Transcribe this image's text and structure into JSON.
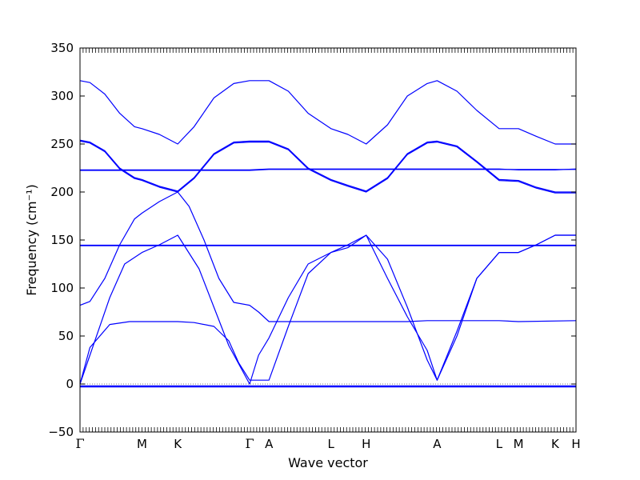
{
  "chart_data": {
    "type": "line",
    "title": "",
    "xlabel": "Wave vector",
    "ylabel": "Frequency (cm⁻¹)",
    "ylim": [
      -50,
      350
    ],
    "yticks": [
      -50,
      0,
      50,
      100,
      150,
      200,
      250,
      300,
      350
    ],
    "xlim": [
      0,
      1
    ],
    "grid": false,
    "high_symmetry_points": [
      {
        "label": "Γ",
        "x": 0.0
      },
      {
        "label": "M",
        "x": 0.125
      },
      {
        "label": "K",
        "x": 0.197
      },
      {
        "label": "Γ",
        "x": 0.342
      },
      {
        "label": "A",
        "x": 0.381
      },
      {
        "label": "L",
        "x": 0.506
      },
      {
        "label": "H",
        "x": 0.577
      },
      {
        "label": "A",
        "x": 0.72
      },
      {
        "label": "L",
        "x": 0.845
      },
      {
        "label": "M",
        "x": 0.884
      },
      {
        "label": "K",
        "x": 0.958
      },
      {
        "label": "H",
        "x": 1.0
      }
    ],
    "series_color": "#0000ff",
    "series": [
      {
        "x": [
          0,
          0.125,
          0.197,
          0.342,
          0.381,
          0.506,
          0.577,
          0.72,
          0.845,
          0.884,
          0.958,
          1.0
        ],
        "y": [
          -2,
          -2,
          -2,
          -2,
          -2,
          -2,
          -2,
          -2,
          -2,
          -2,
          -2,
          -2
        ]
      },
      {
        "x": [
          0,
          0.125,
          0.197,
          0.342,
          0.381,
          0.506,
          0.577,
          0.72,
          0.845,
          0.884,
          0.958,
          1.0
        ],
        "y": [
          -3,
          -3,
          -3,
          -3,
          -3,
          -3,
          -3,
          -3,
          -3,
          -3,
          -3,
          -3
        ]
      },
      {
        "x": [
          0,
          0.02,
          0.06,
          0.1,
          0.125,
          0.16,
          0.197,
          0.23,
          0.27,
          0.3,
          0.32,
          0.342,
          0.381,
          0.42,
          0.46,
          0.506,
          0.54,
          0.577,
          0.62,
          0.66,
          0.7,
          0.72,
          0.76,
          0.8,
          0.845,
          0.884,
          0.92,
          0.958,
          1.0
        ],
        "y": [
          0,
          38,
          62,
          65,
          65,
          65,
          65,
          64,
          60,
          45,
          22,
          4,
          4,
          60,
          115,
          137,
          142,
          155,
          130,
          80,
          25,
          4,
          50,
          110,
          137,
          137,
          145,
          155,
          155
        ]
      },
      {
        "x": [
          0,
          0.03,
          0.06,
          0.09,
          0.125,
          0.16,
          0.197,
          0.24,
          0.27,
          0.3,
          0.342,
          0.36,
          0.381,
          0.42,
          0.46,
          0.506,
          0.54,
          0.577,
          0.62,
          0.66,
          0.7,
          0.72,
          0.76,
          0.8,
          0.845,
          0.884,
          0.92,
          0.958,
          1.0
        ],
        "y": [
          0,
          45,
          90,
          125,
          137,
          145,
          155,
          120,
          80,
          40,
          0,
          30,
          48,
          90,
          125,
          137,
          145,
          155,
          110,
          70,
          35,
          4,
          55,
          110,
          137,
          137,
          145,
          155,
          155
        ]
      },
      {
        "x": [
          0,
          0.02,
          0.05,
          0.08,
          0.11,
          0.125,
          0.16,
          0.197,
          0.22,
          0.25,
          0.28,
          0.31,
          0.342,
          0.36,
          0.381,
          0.42,
          0.46,
          0.506,
          0.54,
          0.577,
          0.62,
          0.66,
          0.7,
          0.72,
          0.76,
          0.8,
          0.845,
          0.884,
          1.0
        ],
        "y": [
          82,
          86,
          110,
          145,
          172,
          178,
          190,
          200,
          185,
          150,
          110,
          85,
          82,
          75,
          65,
          65,
          65,
          65,
          65,
          65,
          65,
          65,
          66,
          66,
          66,
          66,
          66,
          65,
          66
        ]
      },
      {
        "x": [
          0,
          1.0
        ],
        "y": [
          144,
          144
        ]
      },
      {
        "x": [
          0,
          1.0
        ],
        "y": [
          144.6,
          144.6
        ]
      },
      {
        "x": [
          0,
          0.125,
          0.197,
          0.342,
          0.381,
          0.506,
          0.577,
          0.72,
          0.845,
          0.884,
          0.958,
          1.0
        ],
        "y": [
          223,
          223,
          223,
          223,
          224,
          224,
          224,
          224,
          224,
          223,
          223,
          224
        ]
      },
      {
        "x": [
          0,
          0.342,
          0.381,
          1.0
        ],
        "y": [
          222.5,
          222.5,
          223.5,
          223.5
        ]
      },
      {
        "x": [
          0,
          0.02,
          0.05,
          0.08,
          0.11,
          0.125,
          0.16,
          0.197,
          0.23,
          0.27,
          0.31,
          0.342,
          0.381,
          0.42,
          0.46,
          0.506,
          0.54,
          0.577,
          0.62,
          0.66,
          0.7,
          0.72,
          0.76,
          0.8,
          0.845,
          0.884,
          0.92,
          0.958,
          1.0
        ],
        "y": [
          254,
          252,
          243,
          225,
          215,
          213,
          206,
          201,
          215,
          240,
          252,
          253,
          253,
          245,
          225,
          213,
          207,
          201,
          215,
          240,
          252,
          253,
          248,
          232,
          213,
          212,
          205,
          200,
          200
        ]
      },
      {
        "x": [
          0,
          0.02,
          0.05,
          0.08,
          0.11,
          0.125,
          0.16,
          0.197,
          0.23,
          0.27,
          0.31,
          0.342,
          0.381,
          0.42,
          0.46,
          0.506,
          0.54,
          0.577,
          0.62,
          0.66,
          0.7,
          0.72,
          0.76,
          0.8,
          0.845,
          0.884,
          0.92,
          0.958,
          1.0
        ],
        "y": [
          253,
          251,
          242,
          224,
          214,
          212,
          205,
          200,
          214,
          239,
          251,
          252,
          252,
          244,
          224,
          212,
          206,
          200,
          214,
          239,
          251,
          252,
          247,
          231,
          212,
          211,
          204,
          199,
          199
        ]
      },
      {
        "x": [
          0,
          0.02,
          0.05,
          0.08,
          0.11,
          0.125,
          0.16,
          0.197,
          0.23,
          0.27,
          0.31,
          0.342,
          0.381,
          0.42,
          0.46,
          0.506,
          0.54,
          0.577,
          0.62,
          0.66,
          0.7,
          0.72,
          0.76,
          0.8,
          0.845,
          0.884,
          0.92,
          0.958,
          1.0
        ],
        "y": [
          316,
          314,
          302,
          282,
          268,
          266,
          260,
          250,
          268,
          298,
          313,
          316,
          316,
          305,
          282,
          266,
          260,
          250,
          270,
          300,
          313,
          316,
          305,
          285,
          266,
          266,
          258,
          250,
          250
        ]
      }
    ]
  }
}
